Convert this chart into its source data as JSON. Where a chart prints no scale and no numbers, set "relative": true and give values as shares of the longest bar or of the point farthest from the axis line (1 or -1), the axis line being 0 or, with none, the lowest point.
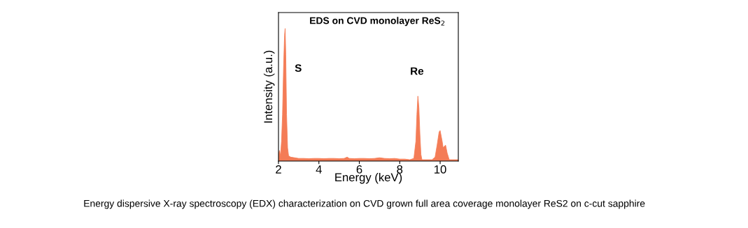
{
  "chart_data": {
    "type": "area",
    "title": "EDS on CVD monolayer ReS$_{2}$",
    "xlabel": "Energy (keV)",
    "ylabel": "Intensity (a.u.)",
    "relative": true,
    "xlim": [
      2,
      10.9
    ],
    "xticks": [
      2,
      4,
      6,
      8,
      10
    ],
    "grid": false,
    "tick_labels": "x",
    "x": [
      2.0,
      2.05,
      2.1,
      2.15,
      2.2,
      2.25,
      2.3,
      2.33,
      2.36,
      2.4,
      2.45,
      2.5,
      2.6,
      2.8,
      3.0,
      3.25,
      3.5,
      3.75,
      4.0,
      4.25,
      4.5,
      4.75,
      5.0,
      5.25,
      5.4,
      5.5,
      5.75,
      6.0,
      6.25,
      6.5,
      6.75,
      7.0,
      7.25,
      7.5,
      7.75,
      8.0,
      8.25,
      8.5,
      8.7,
      8.8,
      8.85,
      8.9,
      8.95,
      9.0,
      9.05,
      9.1,
      9.3,
      9.6,
      9.75,
      9.85,
      9.95,
      10.0,
      10.1,
      10.15,
      10.2,
      10.27,
      10.35,
      10.45,
      10.6,
      10.9
    ],
    "series": [
      {
        "color": "#f47c56",
        "values": [
          0.05,
          0.08,
          0.04,
          0.15,
          0.35,
          0.7,
          0.95,
          1.0,
          0.8,
          0.35,
          0.1,
          0.04,
          0.03,
          0.025,
          0.02,
          0.02,
          0.018,
          0.02,
          0.02,
          0.018,
          0.02,
          0.02,
          0.018,
          0.02,
          0.03,
          0.02,
          0.018,
          0.02,
          0.02,
          0.018,
          0.02,
          0.025,
          0.02,
          0.018,
          0.02,
          0.015,
          0.015,
          0.01,
          0.02,
          0.15,
          0.35,
          0.49,
          0.4,
          0.2,
          0.05,
          0.01,
          0.01,
          0.01,
          0.03,
          0.12,
          0.22,
          0.23,
          0.15,
          0.1,
          0.11,
          0.12,
          0.06,
          0.01,
          0.01,
          0.01
        ]
      }
    ],
    "annotations": [
      "S",
      "Re",
      "Energy dispersive X-ray spectroscopy (EDX) characterization on CVD grown full area coverage monolayer ReS2 on c-cut sapphire"
    ]
  }
}
